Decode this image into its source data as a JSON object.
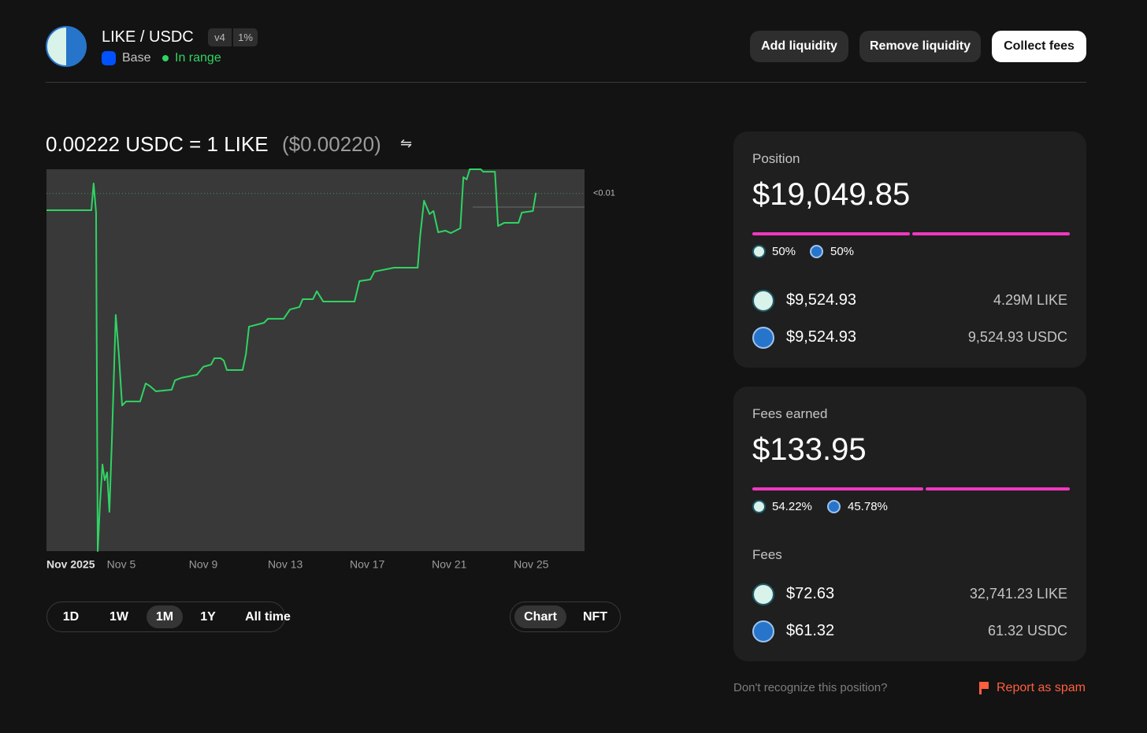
{
  "header": {
    "pair": "LIKE / USDC",
    "version": "v4",
    "fee_tier": "1%",
    "network": "Base",
    "status": "In range"
  },
  "actions": [
    "Add liquidity",
    "Remove liquidity",
    "Collect fees"
  ],
  "price": {
    "rate": "0.00222 USDC = 1 LIKE",
    "usd": "($0.00220)"
  },
  "chart_data": {
    "type": "line",
    "color": "#2fd463",
    "x": [
      1.35,
      3.54,
      3.65,
      3.77,
      3.85,
      3.96,
      4.08,
      4.19,
      4.31,
      4.42,
      4.54,
      4.73,
      4.88,
      5.04,
      5.23,
      5.92,
      6.19,
      6.38,
      6.69,
      7.46,
      7.62,
      7.92,
      8.69,
      9.0,
      9.38,
      9.54,
      9.85,
      10.0,
      10.15,
      10.92,
      11.08,
      11.23,
      11.96,
      12.15,
      12.92,
      13.23,
      13.69,
      13.85,
      14.35,
      14.54,
      14.85,
      16.38,
      16.62,
      17.15,
      17.35,
      18.31,
      19.46,
      19.58,
      19.77,
      20.04,
      20.23,
      20.46,
      20.81,
      21.08,
      21.54,
      21.69,
      21.85,
      22.0,
      22.54,
      22.65,
      23.23,
      23.38,
      23.69,
      24.38,
      24.54,
      25.08,
      25.23
    ],
    "values": [
      0.002116,
      0.002116,
      0.002282,
      0.002101,
      0,
      0.000293,
      0.000538,
      0.00044,
      0.000489,
      0.000244,
      0.000684,
      0.001466,
      0.001222,
      0.000904,
      0.000929,
      0.000929,
      0.001041,
      0.001026,
      0.000992,
      0.001002,
      0.00106,
      0.001075,
      0.001095,
      0.001144,
      0.001158,
      0.001197,
      0.001197,
      0.001183,
      0.001124,
      0.001124,
      0.001222,
      0.001393,
      0.001417,
      0.001442,
      0.001442,
      0.0015,
      0.001515,
      0.001564,
      0.001564,
      0.001613,
      0.001549,
      0.001549,
      0.001676,
      0.001686,
      0.001735,
      0.001759,
      0.001759,
      0.001955,
      0.002175,
      0.002092,
      0.002111,
      0.001979,
      0.001989,
      0.001974,
      0.002004,
      0.002321,
      0.002307,
      0.00237,
      0.00237,
      0.002355,
      0.002355,
      0.002018,
      0.002038,
      0.002038,
      0.002101,
      0.002111,
      0.002224
    ],
    "xlim": [
      1.35,
      27.6
    ],
    "ylim": [
      0,
      0.00237
    ],
    "xticks": [
      {
        "value": 1.35,
        "label": "Nov 2025"
      },
      {
        "value": 5,
        "label": "Nov 5"
      },
      {
        "value": 9,
        "label": "Nov 9"
      },
      {
        "value": 13,
        "label": "Nov 13"
      },
      {
        "value": 17,
        "label": "Nov 17"
      },
      {
        "value": 21,
        "label": "Nov 21"
      },
      {
        "value": 25,
        "label": "Nov 25"
      }
    ],
    "reference": {
      "value": 0.00222,
      "label": "<0.01"
    }
  },
  "timeframes": [
    "1D",
    "1W",
    "1M",
    "1Y",
    "All time"
  ],
  "selected_timeframe": 2,
  "view_toggle": [
    "Chart",
    "NFT"
  ],
  "position": {
    "label": "Position",
    "value": "$19,049.85",
    "shares": [
      "50%",
      "50%"
    ],
    "tokens": [
      {
        "usd": "$9,524.93",
        "amount": "4.29M LIKE"
      },
      {
        "usd": "$9,524.93",
        "amount": "9,524.93 USDC"
      }
    ]
  },
  "fees_earned": {
    "label": "Fees earned",
    "value": "$133.95",
    "shares": [
      "54.22%",
      "45.78%"
    ],
    "section": "Fees",
    "tokens": [
      {
        "usd": "$72.63",
        "amount": "32,741.23 LIKE"
      },
      {
        "usd": "$61.32",
        "amount": "61.32 USDC"
      }
    ]
  },
  "footer": {
    "question": "Don't recognize this position?",
    "report": "Report as spam"
  }
}
